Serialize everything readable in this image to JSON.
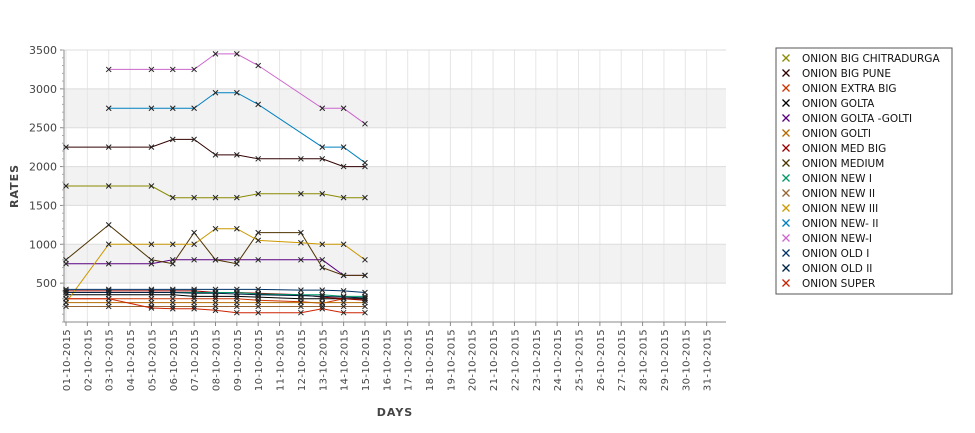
{
  "chart_data": {
    "type": "line",
    "xlabel": "DAYS",
    "ylabel": "RATES",
    "ylim": [
      0,
      3500
    ],
    "yticks": [
      500,
      1000,
      1500,
      2000,
      2500,
      3000,
      3500
    ],
    "grid": true,
    "legend_position": "right",
    "categories": [
      "01-10-2015",
      "02-10-2015",
      "03-10-2015",
      "04-10-2015",
      "05-10-2015",
      "06-10-2015",
      "07-10-2015",
      "08-10-2015",
      "09-10-2015",
      "10-10-2015",
      "11-10-2015",
      "12-10-2015",
      "13-10-2015",
      "14-10-2015",
      "15-10-2015",
      "16-10-2015",
      "17-10-2015",
      "18-10-2015",
      "19-10-2015",
      "20-10-2015",
      "21-10-2015",
      "22-10-2015",
      "23-10-2015",
      "24-10-2015",
      "25-10-2015",
      "26-10-2015",
      "27-10-2015",
      "28-10-2015",
      "29-10-2015",
      "30-10-2015",
      "31-10-2015"
    ],
    "series": [
      {
        "name": "ONION BIG CHITRADURGA",
        "color": "#8a8a00",
        "x": [
          "01-10-2015",
          "03-10-2015",
          "05-10-2015",
          "06-10-2015",
          "07-10-2015",
          "08-10-2015",
          "09-10-2015",
          "10-10-2015",
          "12-10-2015",
          "13-10-2015",
          "14-10-2015",
          "15-10-2015"
        ],
        "values": [
          1750,
          1750,
          1750,
          1600,
          1600,
          1600,
          1600,
          1650,
          1650,
          1650,
          1600,
          1600
        ]
      },
      {
        "name": "ONION BIG PUNE",
        "color": "#300000",
        "x": [
          "01-10-2015",
          "03-10-2015",
          "05-10-2015",
          "06-10-2015",
          "07-10-2015",
          "08-10-2015",
          "09-10-2015",
          "10-10-2015",
          "12-10-2015",
          "13-10-2015",
          "14-10-2015",
          "15-10-2015"
        ],
        "values": [
          2250,
          2250,
          2250,
          2350,
          2350,
          2150,
          2150,
          2100,
          2100,
          2100,
          2000,
          2000
        ]
      },
      {
        "name": "ONION EXTRA BIG",
        "color": "#cc3300",
        "x": [
          "01-10-2015",
          "03-10-2015",
          "05-10-2015",
          "06-10-2015",
          "07-10-2015",
          "08-10-2015",
          "09-10-2015",
          "10-10-2015",
          "12-10-2015",
          "13-10-2015",
          "14-10-2015",
          "15-10-2015"
        ],
        "values": [
          300,
          300,
          300,
          300,
          300,
          300,
          300,
          280,
          260,
          240,
          300,
          300
        ]
      },
      {
        "name": "ONION GOLTA",
        "color": "#000000",
        "x": [
          "01-10-2015",
          "03-10-2015",
          "05-10-2015",
          "06-10-2015",
          "07-10-2015",
          "08-10-2015",
          "09-10-2015",
          "10-10-2015",
          "12-10-2015",
          "13-10-2015",
          "14-10-2015",
          "15-10-2015"
        ],
        "values": [
          350,
          350,
          350,
          350,
          330,
          330,
          330,
          320,
          300,
          300,
          300,
          300
        ]
      },
      {
        "name": "ONION GOLTA -GOLTI",
        "color": "#5a0080",
        "x": [
          "01-10-2015",
          "03-10-2015",
          "05-10-2015",
          "06-10-2015",
          "07-10-2015",
          "08-10-2015",
          "09-10-2015",
          "10-10-2015",
          "12-10-2015",
          "13-10-2015",
          "14-10-2015",
          "15-10-2015"
        ],
        "values": [
          750,
          750,
          750,
          800,
          800,
          800,
          800,
          800,
          800,
          800,
          600,
          600
        ]
      },
      {
        "name": "ONION GOLTI",
        "color": "#b36b00",
        "x": [
          "01-10-2015",
          "03-10-2015",
          "05-10-2015",
          "06-10-2015",
          "07-10-2015",
          "08-10-2015",
          "09-10-2015",
          "10-10-2015",
          "12-10-2015",
          "13-10-2015",
          "14-10-2015",
          "15-10-2015"
        ],
        "values": [
          250,
          250,
          250,
          250,
          250,
          250,
          250,
          250,
          250,
          250,
          250,
          250
        ]
      },
      {
        "name": "ONION MED BIG",
        "color": "#990000",
        "x": [
          "01-10-2015",
          "03-10-2015",
          "05-10-2015",
          "06-10-2015",
          "07-10-2015",
          "08-10-2015",
          "09-10-2015",
          "10-10-2015",
          "12-10-2015",
          "13-10-2015",
          "14-10-2015",
          "15-10-2015"
        ],
        "values": [
          400,
          400,
          400,
          400,
          400,
          380,
          380,
          370,
          350,
          320,
          300,
          280
        ]
      },
      {
        "name": "ONION MEDIUM",
        "color": "#4d3300",
        "x": [
          "01-10-2015",
          "03-10-2015",
          "05-10-2015",
          "06-10-2015",
          "07-10-2015",
          "08-10-2015",
          "09-10-2015",
          "10-10-2015",
          "12-10-2015",
          "13-10-2015",
          "14-10-2015",
          "15-10-2015"
        ],
        "values": [
          800,
          1250,
          800,
          750,
          1150,
          800,
          750,
          1150,
          1150,
          700,
          600,
          600
        ]
      },
      {
        "name": "ONION NEW I",
        "color": "#009966",
        "x": [
          "01-10-2015",
          "03-10-2015",
          "05-10-2015",
          "06-10-2015",
          "07-10-2015",
          "08-10-2015",
          "09-10-2015",
          "10-10-2015",
          "12-10-2015",
          "13-10-2015",
          "14-10-2015",
          "15-10-2015"
        ],
        "values": [
          380,
          380,
          380,
          380,
          380,
          380,
          380,
          360,
          350,
          350,
          330,
          330
        ]
      },
      {
        "name": "ONION NEW II",
        "color": "#996633",
        "x": [
          "01-10-2015",
          "03-10-2015",
          "05-10-2015",
          "06-10-2015",
          "07-10-2015",
          "08-10-2015",
          "09-10-2015",
          "10-10-2015",
          "12-10-2015",
          "13-10-2015",
          "14-10-2015",
          "15-10-2015"
        ],
        "values": [
          200,
          200,
          200,
          200,
          200,
          200,
          200,
          200,
          200,
          200,
          200,
          200
        ]
      },
      {
        "name": "ONION NEW III",
        "color": "#cc9900",
        "x": [
          "01-10-2015",
          "03-10-2015",
          "05-10-2015",
          "06-10-2015",
          "07-10-2015",
          "08-10-2015",
          "09-10-2015",
          "10-10-2015",
          "12-10-2015",
          "13-10-2015",
          "14-10-2015",
          "15-10-2015"
        ],
        "values": [
          250,
          1000,
          1000,
          1000,
          1000,
          1200,
          1200,
          1050,
          1020,
          1000,
          1000,
          800
        ]
      },
      {
        "name": "ONION NEW- II",
        "color": "#0080c0",
        "x": [
          "03-10-2015",
          "05-10-2015",
          "06-10-2015",
          "07-10-2015",
          "08-10-2015",
          "09-10-2015",
          "10-10-2015",
          "13-10-2015",
          "14-10-2015",
          "15-10-2015"
        ],
        "values": [
          2750,
          2750,
          2750,
          2750,
          2950,
          2950,
          2800,
          2250,
          2250,
          2050
        ]
      },
      {
        "name": "ONION NEW-I",
        "color": "#cc66cc",
        "x": [
          "03-10-2015",
          "05-10-2015",
          "06-10-2015",
          "07-10-2015",
          "08-10-2015",
          "09-10-2015",
          "10-10-2015",
          "13-10-2015",
          "14-10-2015",
          "15-10-2015"
        ],
        "values": [
          3250,
          3250,
          3250,
          3250,
          3450,
          3450,
          3300,
          2750,
          2750,
          2550
        ]
      },
      {
        "name": "ONION OLD I",
        "color": "#003366",
        "x": [
          "01-10-2015",
          "03-10-2015",
          "05-10-2015",
          "06-10-2015",
          "07-10-2015",
          "08-10-2015",
          "09-10-2015",
          "10-10-2015",
          "12-10-2015",
          "13-10-2015",
          "14-10-2015",
          "15-10-2015"
        ],
        "values": [
          420,
          420,
          420,
          420,
          420,
          420,
          420,
          420,
          410,
          410,
          400,
          380
        ]
      },
      {
        "name": "ONION OLD II",
        "color": "#002244",
        "x": [
          "01-10-2015",
          "03-10-2015",
          "05-10-2015",
          "06-10-2015",
          "07-10-2015",
          "08-10-2015",
          "09-10-2015",
          "10-10-2015",
          "12-10-2015",
          "13-10-2015",
          "14-10-2015",
          "15-10-2015"
        ],
        "values": [
          380,
          380,
          380,
          380,
          370,
          370,
          360,
          350,
          340,
          330,
          320,
          310
        ]
      },
      {
        "name": "ONION SUPER",
        "color": "#cc2200",
        "x": [
          "01-10-2015",
          "03-10-2015",
          "05-10-2015",
          "06-10-2015",
          "07-10-2015",
          "08-10-2015",
          "09-10-2015",
          "10-10-2015",
          "12-10-2015",
          "13-10-2015",
          "14-10-2015",
          "15-10-2015"
        ],
        "values": [
          300,
          300,
          180,
          170,
          170,
          150,
          120,
          120,
          120,
          170,
          120,
          120
        ]
      }
    ]
  }
}
